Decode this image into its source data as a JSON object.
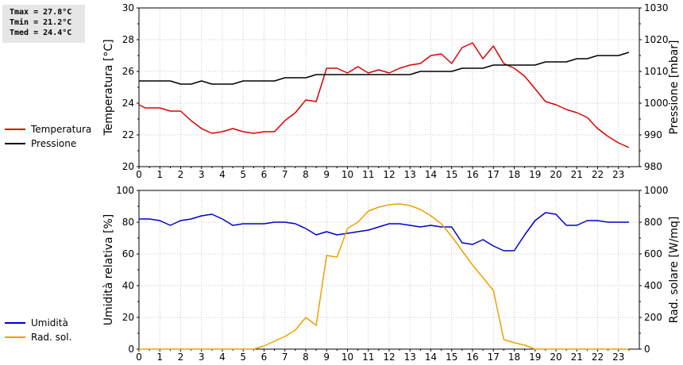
{
  "stats": {
    "tmax": "Tmax = 27.8°C",
    "tmin": "Tmin = 21.2°C",
    "tmed": "Tmed = 24.4°C"
  },
  "legend_top": [
    {
      "label": "Temperatura",
      "color": "#dd0000"
    },
    {
      "label": "Pressione",
      "color": "#000000"
    }
  ],
  "legend_bottom": [
    {
      "label": "Umidità",
      "color": "#0000cc"
    },
    {
      "label": "Rad. sol.",
      "color": "#f0a000"
    }
  ],
  "chart_data": [
    {
      "type": "line",
      "xlim": [
        0,
        24
      ],
      "x_ticks": [
        "0",
        "1",
        "2",
        "3",
        "4",
        "5",
        "6",
        "7",
        "8",
        "9",
        "10",
        "11",
        "12",
        "13",
        "14",
        "15",
        "16",
        "17",
        "18",
        "19",
        "20",
        "21",
        "22",
        "23"
      ],
      "ylabel_left": "Temperatura [°C]",
      "ylim_left": [
        20,
        30
      ],
      "y_ticks_left": [
        "20",
        "22",
        "24",
        "26",
        "28",
        "30"
      ],
      "ylabel_right": "Pressione [mbar]",
      "ylim_right": [
        980,
        1030
      ],
      "y_ticks_right": [
        "980",
        "990",
        "1000",
        "1010",
        "1020",
        "1030"
      ],
      "series": [
        {
          "name": "Temperatura",
          "axis": "left",
          "color": "#dd0000",
          "points": [
            [
              0,
              23.9
            ],
            [
              0.3,
              23.7
            ],
            [
              1,
              23.7
            ],
            [
              1.5,
              23.5
            ],
            [
              2,
              23.5
            ],
            [
              2.5,
              22.9
            ],
            [
              3,
              22.4
            ],
            [
              3.5,
              22.1
            ],
            [
              4,
              22.2
            ],
            [
              4.5,
              22.4
            ],
            [
              5,
              22.2
            ],
            [
              5.5,
              22.1
            ],
            [
              6,
              22.2
            ],
            [
              6.5,
              22.2
            ],
            [
              7,
              22.9
            ],
            [
              7.5,
              23.4
            ],
            [
              8,
              24.2
            ],
            [
              8.5,
              24.1
            ],
            [
              9,
              26.2
            ],
            [
              9.5,
              26.2
            ],
            [
              10,
              25.9
            ],
            [
              10.5,
              26.3
            ],
            [
              11,
              25.9
            ],
            [
              11.5,
              26.1
            ],
            [
              12,
              25.9
            ],
            [
              12.5,
              26.2
            ],
            [
              13,
              26.4
            ],
            [
              13.5,
              26.5
            ],
            [
              14,
              27.0
            ],
            [
              14.5,
              27.1
            ],
            [
              15,
              26.5
            ],
            [
              15.5,
              27.5
            ],
            [
              16,
              27.8
            ],
            [
              16.5,
              26.8
            ],
            [
              17,
              27.6
            ],
            [
              17.5,
              26.5
            ],
            [
              18,
              26.2
            ],
            [
              18.5,
              25.7
            ],
            [
              19,
              24.9
            ],
            [
              19.5,
              24.1
            ],
            [
              20,
              23.9
            ],
            [
              20.5,
              23.6
            ],
            [
              21,
              23.4
            ],
            [
              21.5,
              23.1
            ],
            [
              22,
              22.4
            ],
            [
              22.5,
              21.9
            ],
            [
              23,
              21.5
            ],
            [
              23.5,
              21.2
            ]
          ]
        },
        {
          "name": "Pressione",
          "axis": "right",
          "color": "#000000",
          "points": [
            [
              0,
              1007
            ],
            [
              1.5,
              1007
            ],
            [
              2,
              1006
            ],
            [
              2.5,
              1006
            ],
            [
              3,
              1007
            ],
            [
              3.5,
              1006
            ],
            [
              4.5,
              1006
            ],
            [
              5,
              1007
            ],
            [
              6.5,
              1007
            ],
            [
              7,
              1008
            ],
            [
              8,
              1008
            ],
            [
              8.5,
              1009
            ],
            [
              13,
              1009
            ],
            [
              13.5,
              1010
            ],
            [
              15,
              1010
            ],
            [
              15.5,
              1011
            ],
            [
              16.5,
              1011
            ],
            [
              17,
              1012
            ],
            [
              19,
              1012
            ],
            [
              19.5,
              1013
            ],
            [
              20.5,
              1013
            ],
            [
              21,
              1014
            ],
            [
              21.5,
              1014
            ],
            [
              22,
              1015
            ],
            [
              23,
              1015
            ],
            [
              23.5,
              1016
            ]
          ]
        }
      ]
    },
    {
      "type": "line",
      "xlim": [
        0,
        24
      ],
      "x_ticks": [
        "0",
        "1",
        "2",
        "3",
        "4",
        "5",
        "6",
        "7",
        "8",
        "9",
        "10",
        "11",
        "12",
        "13",
        "14",
        "15",
        "16",
        "17",
        "18",
        "19",
        "20",
        "21",
        "22",
        "23"
      ],
      "ylabel_left": "Umidità relativa [%]",
      "ylim_left": [
        0,
        100
      ],
      "y_ticks_left": [
        "0",
        "20",
        "40",
        "60",
        "80",
        "100"
      ],
      "ylabel_right": "Rad. solare [W/mq]",
      "ylim_right": [
        0,
        1000
      ],
      "y_ticks_right": [
        "0",
        "200",
        "400",
        "600",
        "800",
        "1000"
      ],
      "series": [
        {
          "name": "Umidità",
          "axis": "left",
          "color": "#0000cc",
          "points": [
            [
              0,
              82
            ],
            [
              0.5,
              82
            ],
            [
              1,
              81
            ],
            [
              1.5,
              78
            ],
            [
              2,
              81
            ],
            [
              2.5,
              82
            ],
            [
              3,
              84
            ],
            [
              3.5,
              85
            ],
            [
              4,
              82
            ],
            [
              4.5,
              78
            ],
            [
              5,
              79
            ],
            [
              6,
              79
            ],
            [
              6.5,
              80
            ],
            [
              7,
              80
            ],
            [
              7.5,
              79
            ],
            [
              8,
              76
            ],
            [
              8.5,
              72
            ],
            [
              9,
              74
            ],
            [
              9.5,
              72
            ],
            [
              10,
              73
            ],
            [
              10.5,
              74
            ],
            [
              11,
              75
            ],
            [
              11.5,
              77
            ],
            [
              12,
              79
            ],
            [
              12.5,
              79
            ],
            [
              13,
              78
            ],
            [
              13.5,
              77
            ],
            [
              14,
              78
            ],
            [
              14.5,
              77
            ],
            [
              15,
              77
            ],
            [
              15.5,
              67
            ],
            [
              16,
              66
            ],
            [
              16.5,
              69
            ],
            [
              17,
              65
            ],
            [
              17.5,
              62
            ],
            [
              18,
              62
            ],
            [
              18.5,
              72
            ],
            [
              19,
              81
            ],
            [
              19.5,
              86
            ],
            [
              20,
              85
            ],
            [
              20.5,
              78
            ],
            [
              21,
              78
            ],
            [
              21.5,
              81
            ],
            [
              22,
              81
            ],
            [
              22.5,
              80
            ],
            [
              23.5,
              80
            ]
          ]
        },
        {
          "name": "Rad. sol.",
          "axis": "right",
          "color": "#f0a000",
          "points": [
            [
              0,
              0
            ],
            [
              5.5,
              0
            ],
            [
              6,
              20
            ],
            [
              6.5,
              50
            ],
            [
              7,
              80
            ],
            [
              7.5,
              120
            ],
            [
              8,
              200
            ],
            [
              8.5,
              150
            ],
            [
              9,
              590
            ],
            [
              9.5,
              580
            ],
            [
              10,
              760
            ],
            [
              10.5,
              800
            ],
            [
              11,
              870
            ],
            [
              11.5,
              895
            ],
            [
              12,
              910
            ],
            [
              12.5,
              915
            ],
            [
              13,
              905
            ],
            [
              13.5,
              880
            ],
            [
              14,
              840
            ],
            [
              14.5,
              790
            ],
            [
              15,
              710
            ],
            [
              15.5,
              620
            ],
            [
              16,
              530
            ],
            [
              16.5,
              450
            ],
            [
              17,
              370
            ],
            [
              17.5,
              60
            ],
            [
              18,
              40
            ],
            [
              18.5,
              25
            ],
            [
              19,
              0
            ],
            [
              23.5,
              0
            ]
          ]
        }
      ]
    }
  ]
}
